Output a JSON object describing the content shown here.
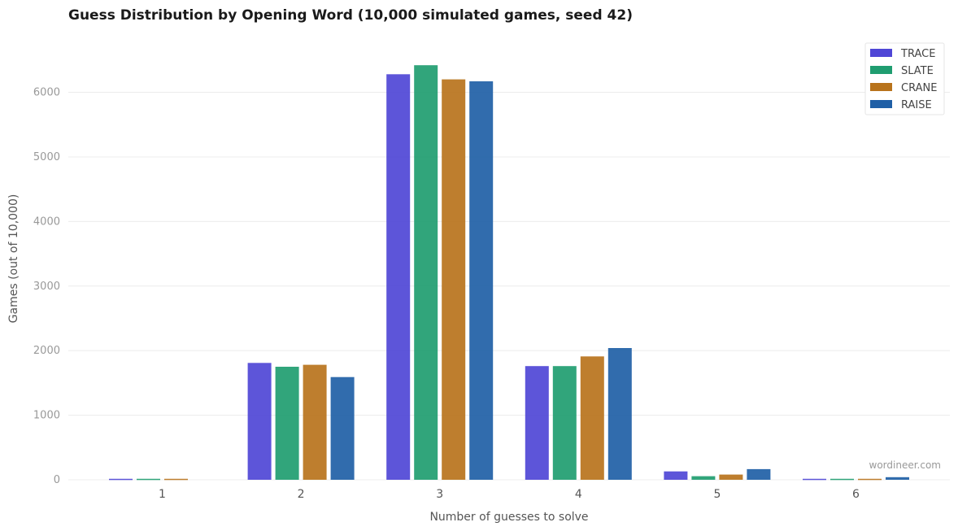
{
  "chart_data": {
    "type": "bar",
    "title": "Guess Distribution by Opening Word (10,000 simulated games, seed 42)",
    "xlabel": "Number of guesses to solve",
    "ylabel": "Games (out of 10,000)",
    "categories": [
      "1",
      "2",
      "3",
      "4",
      "5",
      "6"
    ],
    "ylim": [
      0,
      6800
    ],
    "yticks": [
      "0",
      "1000",
      "2000",
      "3000",
      "4000",
      "5000",
      "6000"
    ],
    "grid": true,
    "legend_position": "top-right",
    "series": [
      {
        "name": "TRACE",
        "color": "#4f46d6",
        "values": [
          15,
          1810,
          6280,
          1760,
          130,
          15
        ]
      },
      {
        "name": "SLATE",
        "color": "#1f9d70",
        "values": [
          15,
          1750,
          6420,
          1760,
          55,
          15
        ]
      },
      {
        "name": "CRANE",
        "color": "#b8731c",
        "values": [
          15,
          1780,
          6200,
          1910,
          80,
          15
        ]
      },
      {
        "name": "RAISE",
        "color": "#1f5fa6",
        "values": [
          0,
          1590,
          6170,
          2040,
          165,
          40
        ]
      }
    ],
    "watermark": "wordineer.com"
  }
}
